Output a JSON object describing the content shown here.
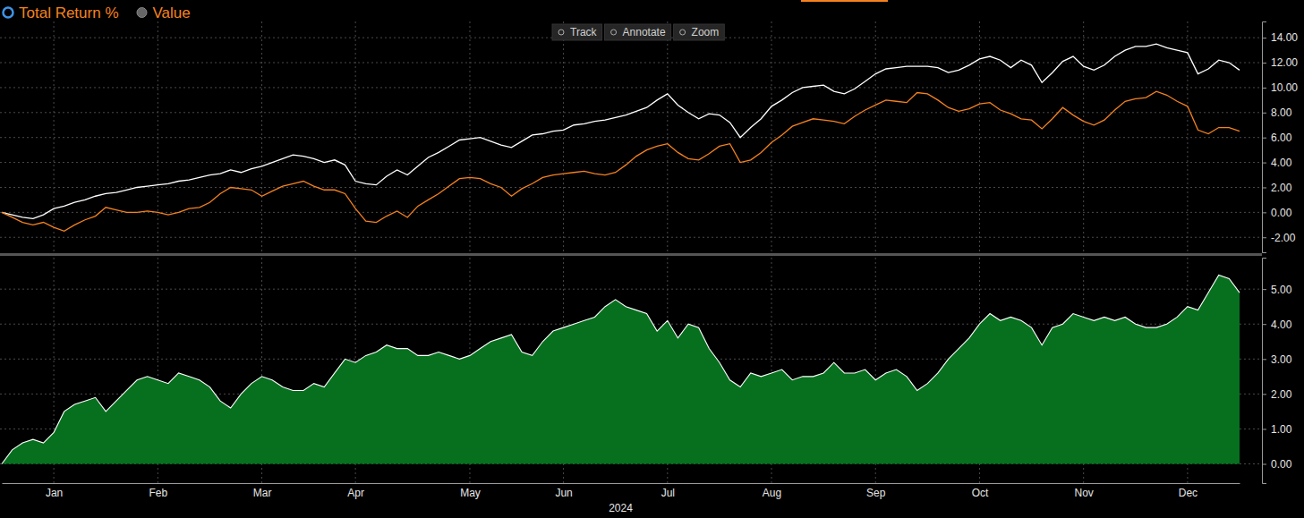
{
  "controls": {
    "options": [
      "Total Return %",
      "Value"
    ],
    "selected": 0,
    "toolbar": [
      "Track",
      "Annotate",
      "Zoom"
    ]
  },
  "chart_data": [
    {
      "type": "line",
      "categories": [
        null,
        null,
        null,
        null,
        null,
        "Jan",
        null,
        null,
        null,
        null,
        null,
        null,
        null,
        null,
        null,
        "Feb",
        null,
        null,
        null,
        null,
        null,
        null,
        null,
        null,
        null,
        "Mar",
        null,
        null,
        null,
        null,
        null,
        null,
        null,
        null,
        "Apr",
        null,
        null,
        null,
        null,
        null,
        null,
        null,
        null,
        null,
        null,
        "May",
        null,
        null,
        null,
        null,
        null,
        null,
        null,
        null,
        "Jun",
        null,
        null,
        null,
        null,
        null,
        null,
        null,
        null,
        null,
        "Jul",
        null,
        null,
        null,
        null,
        null,
        null,
        null,
        null,
        null,
        "Aug",
        null,
        null,
        null,
        null,
        null,
        null,
        null,
        null,
        null,
        "Sep",
        null,
        null,
        null,
        null,
        null,
        null,
        null,
        null,
        null,
        "Oct",
        null,
        null,
        null,
        null,
        null,
        null,
        null,
        null,
        null,
        "Nov",
        null,
        null,
        null,
        null,
        null,
        null,
        null,
        null,
        null,
        "Dec",
        null,
        null,
        null,
        null,
        null
      ],
      "series": [
        {
          "color": "#ffffff",
          "values": [
            0,
            -0.2,
            -0.4,
            -0.5,
            -0.2,
            0.3,
            0.5,
            0.8,
            1,
            1.3,
            1.5,
            1.6,
            1.8,
            2,
            2.1,
            2.2,
            2.3,
            2.5,
            2.6,
            2.8,
            3,
            3.1,
            3.4,
            3.2,
            3.5,
            3.7,
            4,
            4.3,
            4.6,
            4.5,
            4.3,
            4,
            4.2,
            3.8,
            2.5,
            2.3,
            2.2,
            2.9,
            3.4,
            3,
            3.7,
            4.4,
            4.8,
            5.3,
            5.8,
            5.9,
            6,
            5.7,
            5.4,
            5.2,
            5.7,
            6.2,
            6.3,
            6.5,
            6.6,
            7,
            7.1,
            7.3,
            7.4,
            7.6,
            7.8,
            8.1,
            8.4,
            9,
            9.5,
            8.6,
            8,
            7.5,
            7.9,
            7.8,
            7.2,
            6,
            6.8,
            7.5,
            8.5,
            9,
            9.6,
            10,
            10.1,
            10.2,
            9.7,
            9.5,
            9.9,
            10.5,
            11.1,
            11.5,
            11.6,
            11.7,
            11.7,
            11.7,
            11.6,
            11.2,
            11.4,
            11.8,
            12.3,
            12.5,
            12.2,
            11.6,
            12.2,
            11.8,
            10.4,
            11.2,
            12.1,
            12.5,
            11.7,
            11.4,
            11.8,
            12.5,
            13,
            13.3,
            13.3,
            13.5,
            13.2,
            13,
            12.8,
            11.1,
            11.5,
            12.2,
            12,
            11.4
          ]
        },
        {
          "color": "#f5821f",
          "values": [
            0,
            -0.4,
            -0.8,
            -1,
            -0.8,
            -1.2,
            -1.5,
            -1,
            -0.6,
            -0.3,
            0.4,
            0.2,
            0,
            0,
            0.1,
            0,
            -0.2,
            0,
            0.3,
            0.4,
            0.8,
            1.5,
            2,
            1.9,
            1.8,
            1.3,
            1.7,
            2.1,
            2.3,
            2.5,
            2.1,
            1.8,
            1.8,
            1.5,
            0.3,
            -0.7,
            -0.8,
            -0.3,
            0.1,
            -0.4,
            0.5,
            1,
            1.5,
            2.1,
            2.7,
            2.8,
            2.7,
            2.3,
            2,
            1.3,
            1.9,
            2.3,
            2.8,
            3,
            3.1,
            3.2,
            3.3,
            3.1,
            3,
            3.2,
            3.8,
            4.5,
            5,
            5.3,
            5.5,
            4.8,
            4.3,
            4.2,
            4.7,
            5.3,
            5.5,
            4,
            4.2,
            4.8,
            5.6,
            6.2,
            6.9,
            7.2,
            7.5,
            7.4,
            7.3,
            7.1,
            7.7,
            8.2,
            8.6,
            9,
            8.9,
            8.8,
            9.6,
            9.5,
            9,
            8.4,
            8.1,
            8.3,
            8.7,
            8.8,
            8.2,
            7.9,
            7.5,
            7.4,
            6.7,
            7.5,
            8.4,
            7.8,
            7.3,
            7,
            7.4,
            8.2,
            8.9,
            9.1,
            9.2,
            9.7,
            9.4,
            8.9,
            8.5,
            6.6,
            6.3,
            6.8,
            6.8,
            6.5
          ]
        }
      ],
      "ylim": [
        -3.2,
        15.3
      ],
      "yticks": [
        {
          "value": -2,
          "label": "-2.00"
        },
        {
          "value": 0,
          "label": "0.00"
        },
        {
          "value": 2,
          "label": "2.00"
        },
        {
          "value": 4,
          "label": "4.00"
        },
        {
          "value": 6,
          "label": "6.00"
        },
        {
          "value": 8,
          "label": "8.00"
        },
        {
          "value": 10,
          "label": "10.00"
        },
        {
          "value": 12,
          "label": "12.00"
        },
        {
          "value": 14,
          "label": "14.00"
        }
      ],
      "grid": true,
      "tick_labels": "y"
    },
    {
      "type": "area",
      "xlabel": "2024",
      "categories": [
        null,
        null,
        null,
        null,
        null,
        "Jan",
        null,
        null,
        null,
        null,
        null,
        null,
        null,
        null,
        null,
        "Feb",
        null,
        null,
        null,
        null,
        null,
        null,
        null,
        null,
        null,
        "Mar",
        null,
        null,
        null,
        null,
        null,
        null,
        null,
        null,
        "Apr",
        null,
        null,
        null,
        null,
        null,
        null,
        null,
        null,
        null,
        null,
        "May",
        null,
        null,
        null,
        null,
        null,
        null,
        null,
        null,
        "Jun",
        null,
        null,
        null,
        null,
        null,
        null,
        null,
        null,
        null,
        "Jul",
        null,
        null,
        null,
        null,
        null,
        null,
        null,
        null,
        null,
        "Aug",
        null,
        null,
        null,
        null,
        null,
        null,
        null,
        null,
        null,
        "Sep",
        null,
        null,
        null,
        null,
        null,
        null,
        null,
        null,
        null,
        "Oct",
        null,
        null,
        null,
        null,
        null,
        null,
        null,
        null,
        null,
        "Nov",
        null,
        null,
        null,
        null,
        null,
        null,
        null,
        null,
        null,
        "Dec",
        null,
        null,
        null,
        null,
        null
      ],
      "series": [
        {
          "color": "#06701f",
          "values": [
            0,
            0.4,
            0.6,
            0.7,
            0.6,
            0.9,
            1.5,
            1.7,
            1.8,
            1.9,
            1.5,
            1.8,
            2.1,
            2.4,
            2.5,
            2.4,
            2.3,
            2.6,
            2.5,
            2.4,
            2.2,
            1.8,
            1.6,
            2,
            2.3,
            2.5,
            2.4,
            2.2,
            2.1,
            2.1,
            2.3,
            2.2,
            2.6,
            3,
            2.9,
            3.1,
            3.2,
            3.4,
            3.3,
            3.3,
            3.1,
            3.1,
            3.2,
            3.1,
            3,
            3.1,
            3.3,
            3.5,
            3.6,
            3.7,
            3.2,
            3.1,
            3.5,
            3.8,
            3.9,
            4,
            4.1,
            4.2,
            4.5,
            4.7,
            4.5,
            4.4,
            4.3,
            3.8,
            4.1,
            3.6,
            4,
            3.9,
            3.3,
            2.9,
            2.4,
            2.2,
            2.6,
            2.5,
            2.6,
            2.7,
            2.4,
            2.5,
            2.5,
            2.6,
            2.9,
            2.6,
            2.6,
            2.7,
            2.4,
            2.6,
            2.7,
            2.5,
            2.1,
            2.3,
            2.6,
            3,
            3.3,
            3.6,
            4,
            4.3,
            4.1,
            4.2,
            4.1,
            3.9,
            3.4,
            3.9,
            4,
            4.3,
            4.2,
            4.1,
            4.2,
            4.1,
            4.2,
            4,
            3.9,
            3.9,
            4,
            4.2,
            4.5,
            4.4,
            4.9,
            5.4,
            5.3,
            4.9
          ]
        }
      ],
      "ylim": [
        -0.55,
        5.9
      ],
      "yticks": [
        {
          "value": 0,
          "label": "0.00"
        },
        {
          "value": 1,
          "label": "1.00"
        },
        {
          "value": 2,
          "label": "2.00"
        },
        {
          "value": 3,
          "label": "3.00"
        },
        {
          "value": 4,
          "label": "4.00"
        },
        {
          "value": 5,
          "label": "5.00"
        }
      ],
      "grid": true
    }
  ]
}
